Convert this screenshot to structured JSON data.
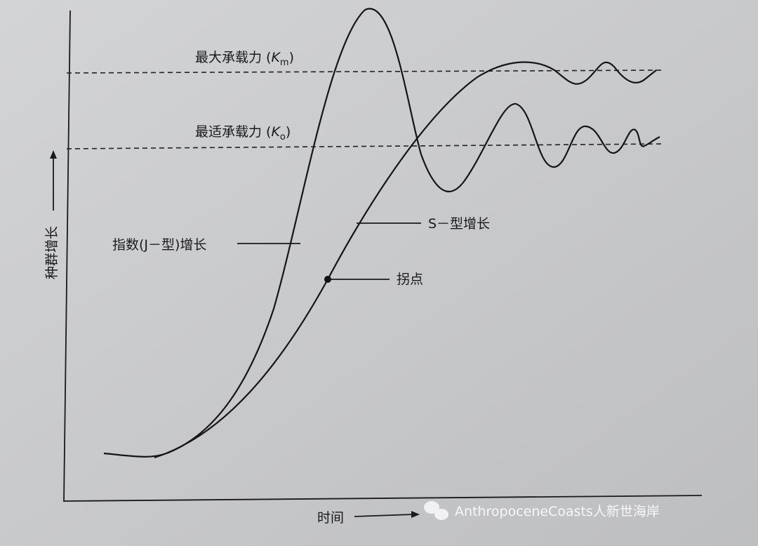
{
  "labels": {
    "max_capacity": {
      "prefix": "最大承载力 (",
      "symbol": "K",
      "subscript": "m",
      "suffix": ")"
    },
    "optimal_capacity": {
      "prefix": "最适承载力 (",
      "symbol": "K",
      "subscript": "o",
      "suffix": ")"
    },
    "s_growth": "S－型增长",
    "j_growth": "指数(J－型)增长",
    "inflection": "拐点",
    "y_axis": "种群增长",
    "x_axis": "时间"
  },
  "watermark": "AnthropoceneCoasts人新世海岸"
}
